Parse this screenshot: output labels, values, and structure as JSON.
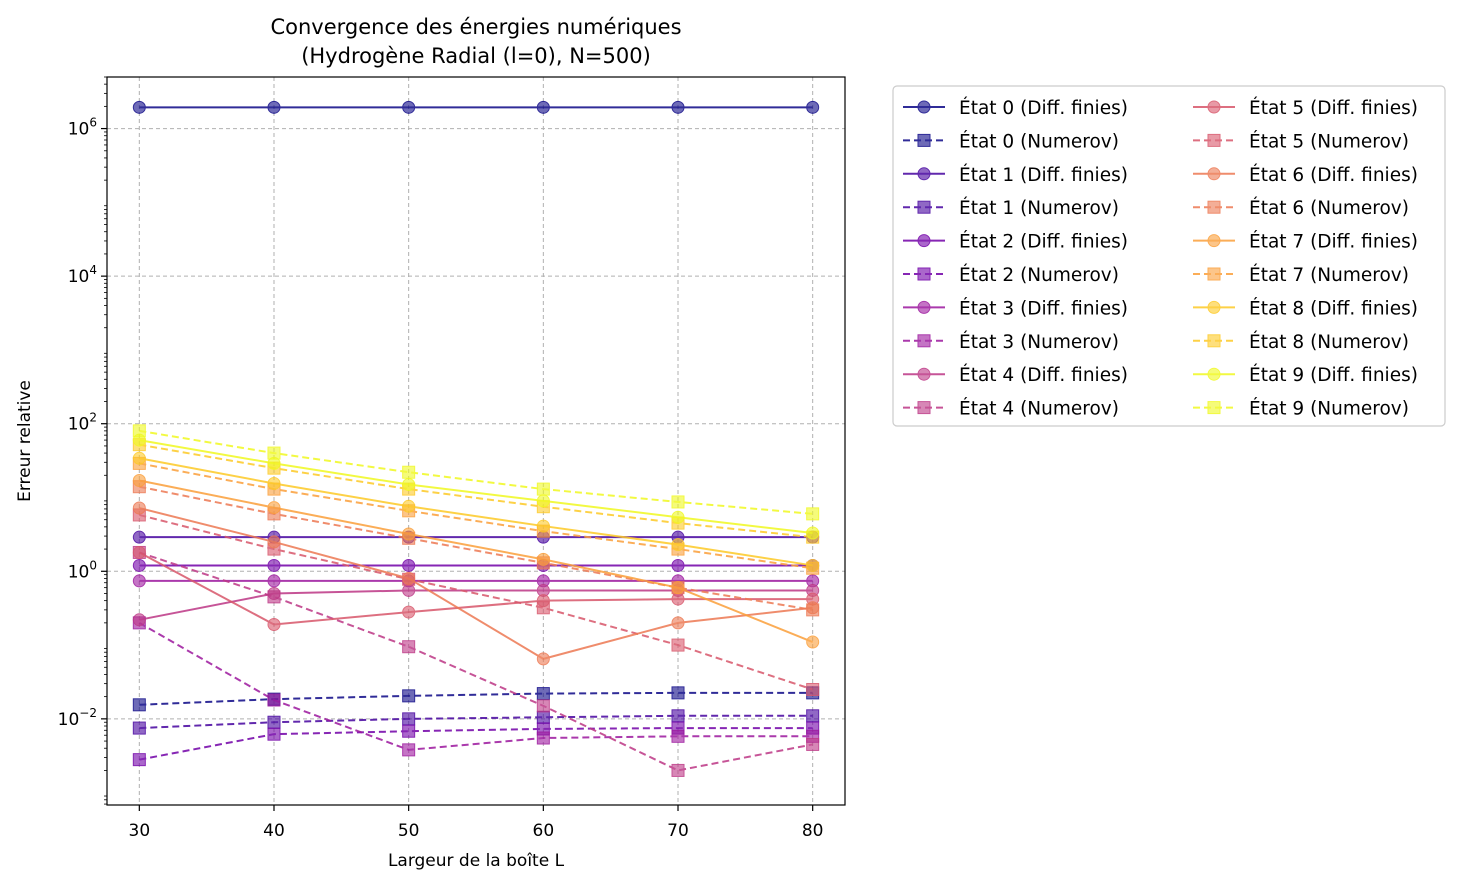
{
  "chart_data": {
    "type": "line",
    "title": [
      "Convergence des énergies numériques",
      "(Hydrogène Radial (l=0), N=500)"
    ],
    "xlabel": "Largeur de la boîte L",
    "ylabel": "Erreur relative",
    "yscale": "log",
    "xlim": [
      27.6,
      82.4
    ],
    "ylim": [
      0.00068,
      5000000
    ],
    "grid": true,
    "legend_position": "outside-right",
    "x": [
      30,
      40,
      50,
      60,
      70,
      80
    ],
    "xticks": [
      "30",
      "40",
      "50",
      "60",
      "70",
      "80"
    ],
    "yticks": [
      {
        "value": 0.01,
        "base": "10",
        "exp": "−2"
      },
      {
        "value": 1,
        "base": "10",
        "exp": "0"
      },
      {
        "value": 100,
        "base": "10",
        "exp": "2"
      },
      {
        "value": 10000,
        "base": "10",
        "exp": "4"
      },
      {
        "value": 1000000,
        "base": "10",
        "exp": "6"
      }
    ],
    "series": [
      {
        "name": "État 0 (Diff. finies)",
        "color": "#0d0887",
        "style": "solid",
        "marker": "circle",
        "values": [
          1940000,
          1940000,
          1940000,
          1940000,
          1940000,
          1940000
        ]
      },
      {
        "name": "État 0 (Numerov)",
        "color": "#0d0887",
        "style": "dashed",
        "marker": "square",
        "values": [
          0.0155,
          0.0185,
          0.0205,
          0.022,
          0.0225,
          0.0225
        ]
      },
      {
        "name": "État 1 (Diff. finies)",
        "color": "#46039f",
        "style": "solid",
        "marker": "circle",
        "values": [
          2.9,
          2.9,
          2.9,
          2.9,
          2.9,
          2.9
        ]
      },
      {
        "name": "État 1 (Numerov)",
        "color": "#46039f",
        "style": "dashed",
        "marker": "square",
        "values": [
          0.0075,
          0.009,
          0.01,
          0.0105,
          0.011,
          0.011
        ]
      },
      {
        "name": "État 2 (Diff. finies)",
        "color": "#7201a8",
        "style": "solid",
        "marker": "circle",
        "values": [
          1.2,
          1.2,
          1.2,
          1.2,
          1.2,
          1.2
        ]
      },
      {
        "name": "État 2 (Numerov)",
        "color": "#7201a8",
        "style": "dashed",
        "marker": "square",
        "values": [
          0.0028,
          0.0062,
          0.0068,
          0.0073,
          0.0075,
          0.0075
        ]
      },
      {
        "name": "État 3 (Diff. finies)",
        "color": "#9c179e",
        "style": "solid",
        "marker": "circle",
        "values": [
          0.74,
          0.74,
          0.74,
          0.74,
          0.74,
          0.74
        ]
      },
      {
        "name": "État 3 (Numerov)",
        "color": "#9c179e",
        "style": "dashed",
        "marker": "square",
        "values": [
          0.2,
          0.018,
          0.0038,
          0.0055,
          0.0058,
          0.0058
        ]
      },
      {
        "name": "État 4 (Diff. finies)",
        "color": "#bd3786",
        "style": "solid",
        "marker": "circle",
        "values": [
          0.22,
          0.5,
          0.55,
          0.55,
          0.55,
          0.55
        ]
      },
      {
        "name": "État 4 (Numerov)",
        "color": "#bd3786",
        "style": "dashed",
        "marker": "square",
        "values": [
          1.8,
          0.45,
          0.095,
          0.015,
          0.002,
          0.0045
        ]
      },
      {
        "name": "État 5 (Diff. finies)",
        "color": "#d8576b",
        "style": "solid",
        "marker": "circle",
        "values": [
          1.8,
          0.19,
          0.28,
          0.4,
          0.42,
          0.42
        ]
      },
      {
        "name": "État 5 (Numerov)",
        "color": "#d8576b",
        "style": "dashed",
        "marker": "square",
        "values": [
          5.8,
          2.0,
          0.78,
          0.32,
          0.1,
          0.025
        ]
      },
      {
        "name": "État 6 (Diff. finies)",
        "color": "#ed7953",
        "style": "solid",
        "marker": "circle",
        "values": [
          7.2,
          2.5,
          0.8,
          0.065,
          0.2,
          0.32
        ]
      },
      {
        "name": "État 6 (Numerov)",
        "color": "#ed7953",
        "style": "dashed",
        "marker": "square",
        "values": [
          14.0,
          6.0,
          2.8,
          1.3,
          0.6,
          0.3
        ]
      },
      {
        "name": "État 7 (Diff. finies)",
        "color": "#fb9f3a",
        "style": "solid",
        "marker": "circle",
        "values": [
          17.0,
          7.3,
          3.2,
          1.45,
          0.6,
          0.11
        ]
      },
      {
        "name": "État 7 (Numerov)",
        "color": "#fb9f3a",
        "style": "dashed",
        "marker": "square",
        "values": [
          29.0,
          13.0,
          6.6,
          3.5,
          2.0,
          1.1
        ]
      },
      {
        "name": "État 8 (Diff. finies)",
        "color": "#fdca26",
        "style": "solid",
        "marker": "circle",
        "values": [
          34.0,
          15.5,
          7.6,
          4.1,
          2.3,
          1.2
        ]
      },
      {
        "name": "État 8 (Numerov)",
        "color": "#fdca26",
        "style": "dashed",
        "marker": "square",
        "values": [
          52.0,
          25.0,
          13.0,
          7.5,
          4.5,
          2.9
        ]
      },
      {
        "name": "État 9 (Diff. finies)",
        "color": "#f0f921",
        "style": "solid",
        "marker": "circle",
        "values": [
          60.0,
          29.0,
          15.0,
          9.0,
          5.4,
          3.3
        ]
      },
      {
        "name": "État 9 (Numerov)",
        "color": "#f0f921",
        "style": "dashed",
        "marker": "square",
        "values": [
          80.0,
          40.0,
          22.0,
          13.0,
          8.7,
          6.0
        ]
      }
    ]
  }
}
